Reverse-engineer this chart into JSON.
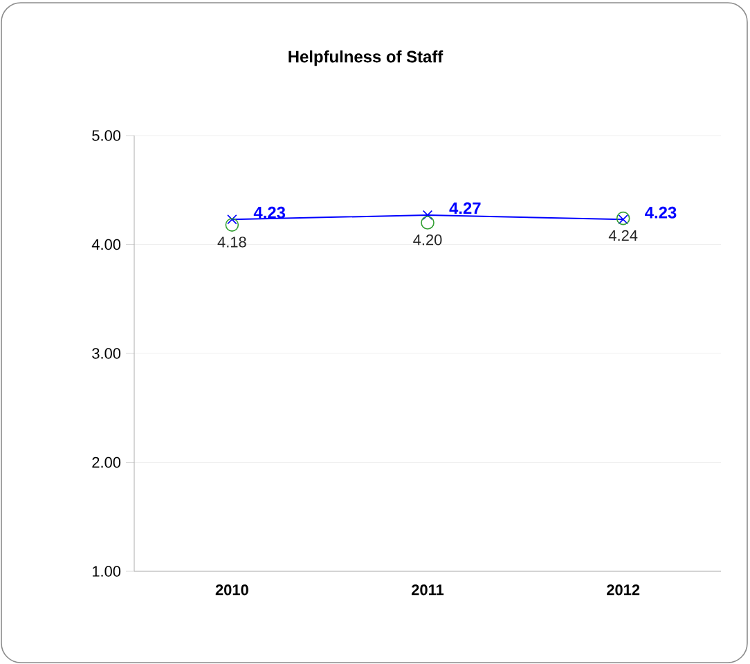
{
  "chart_data": {
    "type": "line",
    "title": "Helpfulness of Staff",
    "categories": [
      "2010",
      "2011",
      "2012"
    ],
    "series": [
      {
        "color": "#0000ff",
        "marker": "cross",
        "values": [
          4.23,
          4.27,
          4.23
        ],
        "value_labels": [
          "4.23",
          "4.27",
          "4.23"
        ]
      },
      {
        "type": "scatter",
        "color": "#33a033",
        "marker": "circle",
        "values": [
          4.18,
          4.2,
          4.24
        ],
        "value_labels": [
          "4.18",
          "4.20",
          "4.24"
        ]
      }
    ],
    "ylim": [
      1,
      5
    ],
    "yticks": [
      {
        "value": 1,
        "label": "1.00"
      },
      {
        "value": 2,
        "label": "2.00"
      },
      {
        "value": 3,
        "label": "3.00"
      },
      {
        "value": 4,
        "label": "4.00"
      },
      {
        "value": 5,
        "label": "5.00"
      }
    ],
    "grid": "y"
  }
}
